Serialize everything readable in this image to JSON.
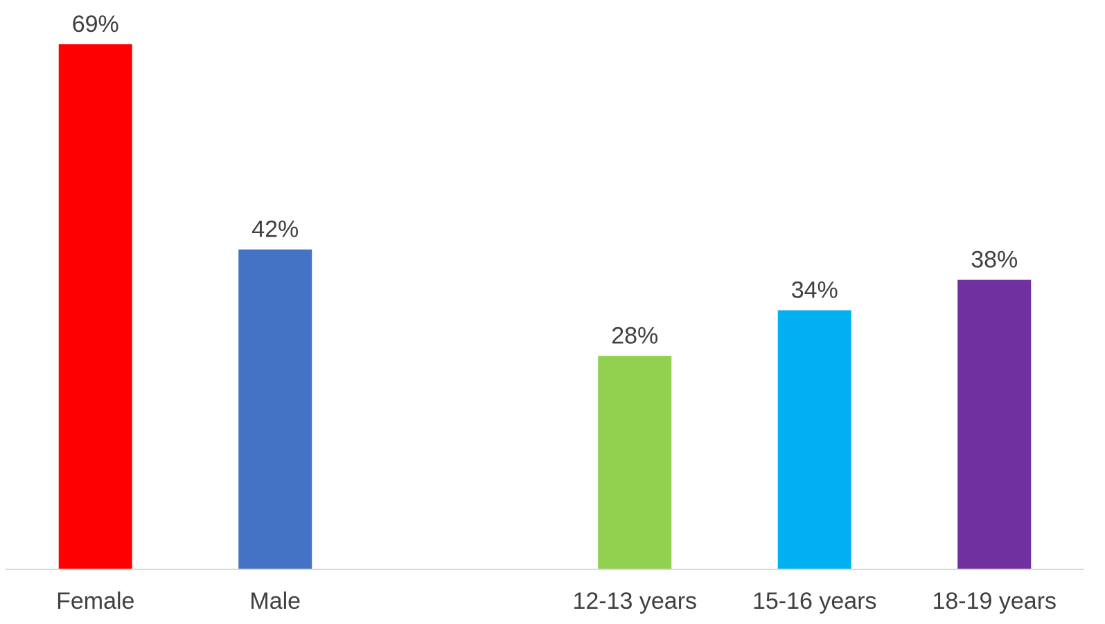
{
  "chart_data": {
    "type": "bar",
    "categories": [
      "Female",
      "Male",
      "",
      "12-13 years",
      "15-16 years",
      "18-19 years"
    ],
    "values": [
      69,
      42,
      null,
      28,
      34,
      38
    ],
    "value_labels": [
      "69%",
      "42%",
      "",
      "28%",
      "34%",
      "38%"
    ],
    "colors": [
      "#ff0000",
      "#4472c4",
      "",
      "#92d050",
      "#00b0f0",
      "#7030a0"
    ],
    "ylim": [
      0,
      69
    ],
    "grid": false,
    "legend": "none",
    "axis_color": "#d9d9d9",
    "text_color": "#404040"
  }
}
